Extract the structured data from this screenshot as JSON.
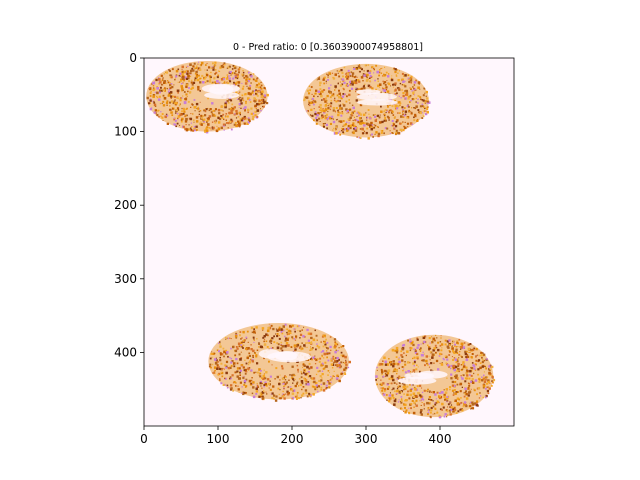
{
  "figure": {
    "title": "0 - Pred ratio: 0 [0.3603900074958801]",
    "background_color": "#fff7fd",
    "tissue_colors": [
      "#f5a623",
      "#e8900f",
      "#c25e06",
      "#8b3a0e",
      "#d9722b",
      "#c77dd6",
      "#b5651d",
      "#f0b040"
    ]
  },
  "axes": {
    "x_range": [
      0,
      500
    ],
    "y_range": [
      0,
      500
    ],
    "x_ticks": [
      {
        "value": 0,
        "label": "0"
      },
      {
        "value": 100,
        "label": "100"
      },
      {
        "value": 200,
        "label": "200"
      },
      {
        "value": 300,
        "label": "300"
      },
      {
        "value": 400,
        "label": "400"
      }
    ],
    "y_ticks": [
      {
        "value": 0,
        "label": "0"
      },
      {
        "value": 100,
        "label": "100"
      },
      {
        "value": 200,
        "label": "200"
      },
      {
        "value": 300,
        "label": "300"
      },
      {
        "value": 400,
        "label": "400"
      }
    ]
  },
  "tissue_sections": [
    {
      "name": "top-left-section",
      "cx": 85,
      "cy": 52,
      "rx": 82,
      "ry": 48
    },
    {
      "name": "top-right-section",
      "cx": 300,
      "cy": 58,
      "rx": 85,
      "ry": 50
    },
    {
      "name": "bottom-left-section",
      "cx": 182,
      "cy": 412,
      "rx": 95,
      "ry": 52
    },
    {
      "name": "bottom-right-section",
      "cx": 392,
      "cy": 432,
      "rx": 80,
      "ry": 56
    }
  ]
}
